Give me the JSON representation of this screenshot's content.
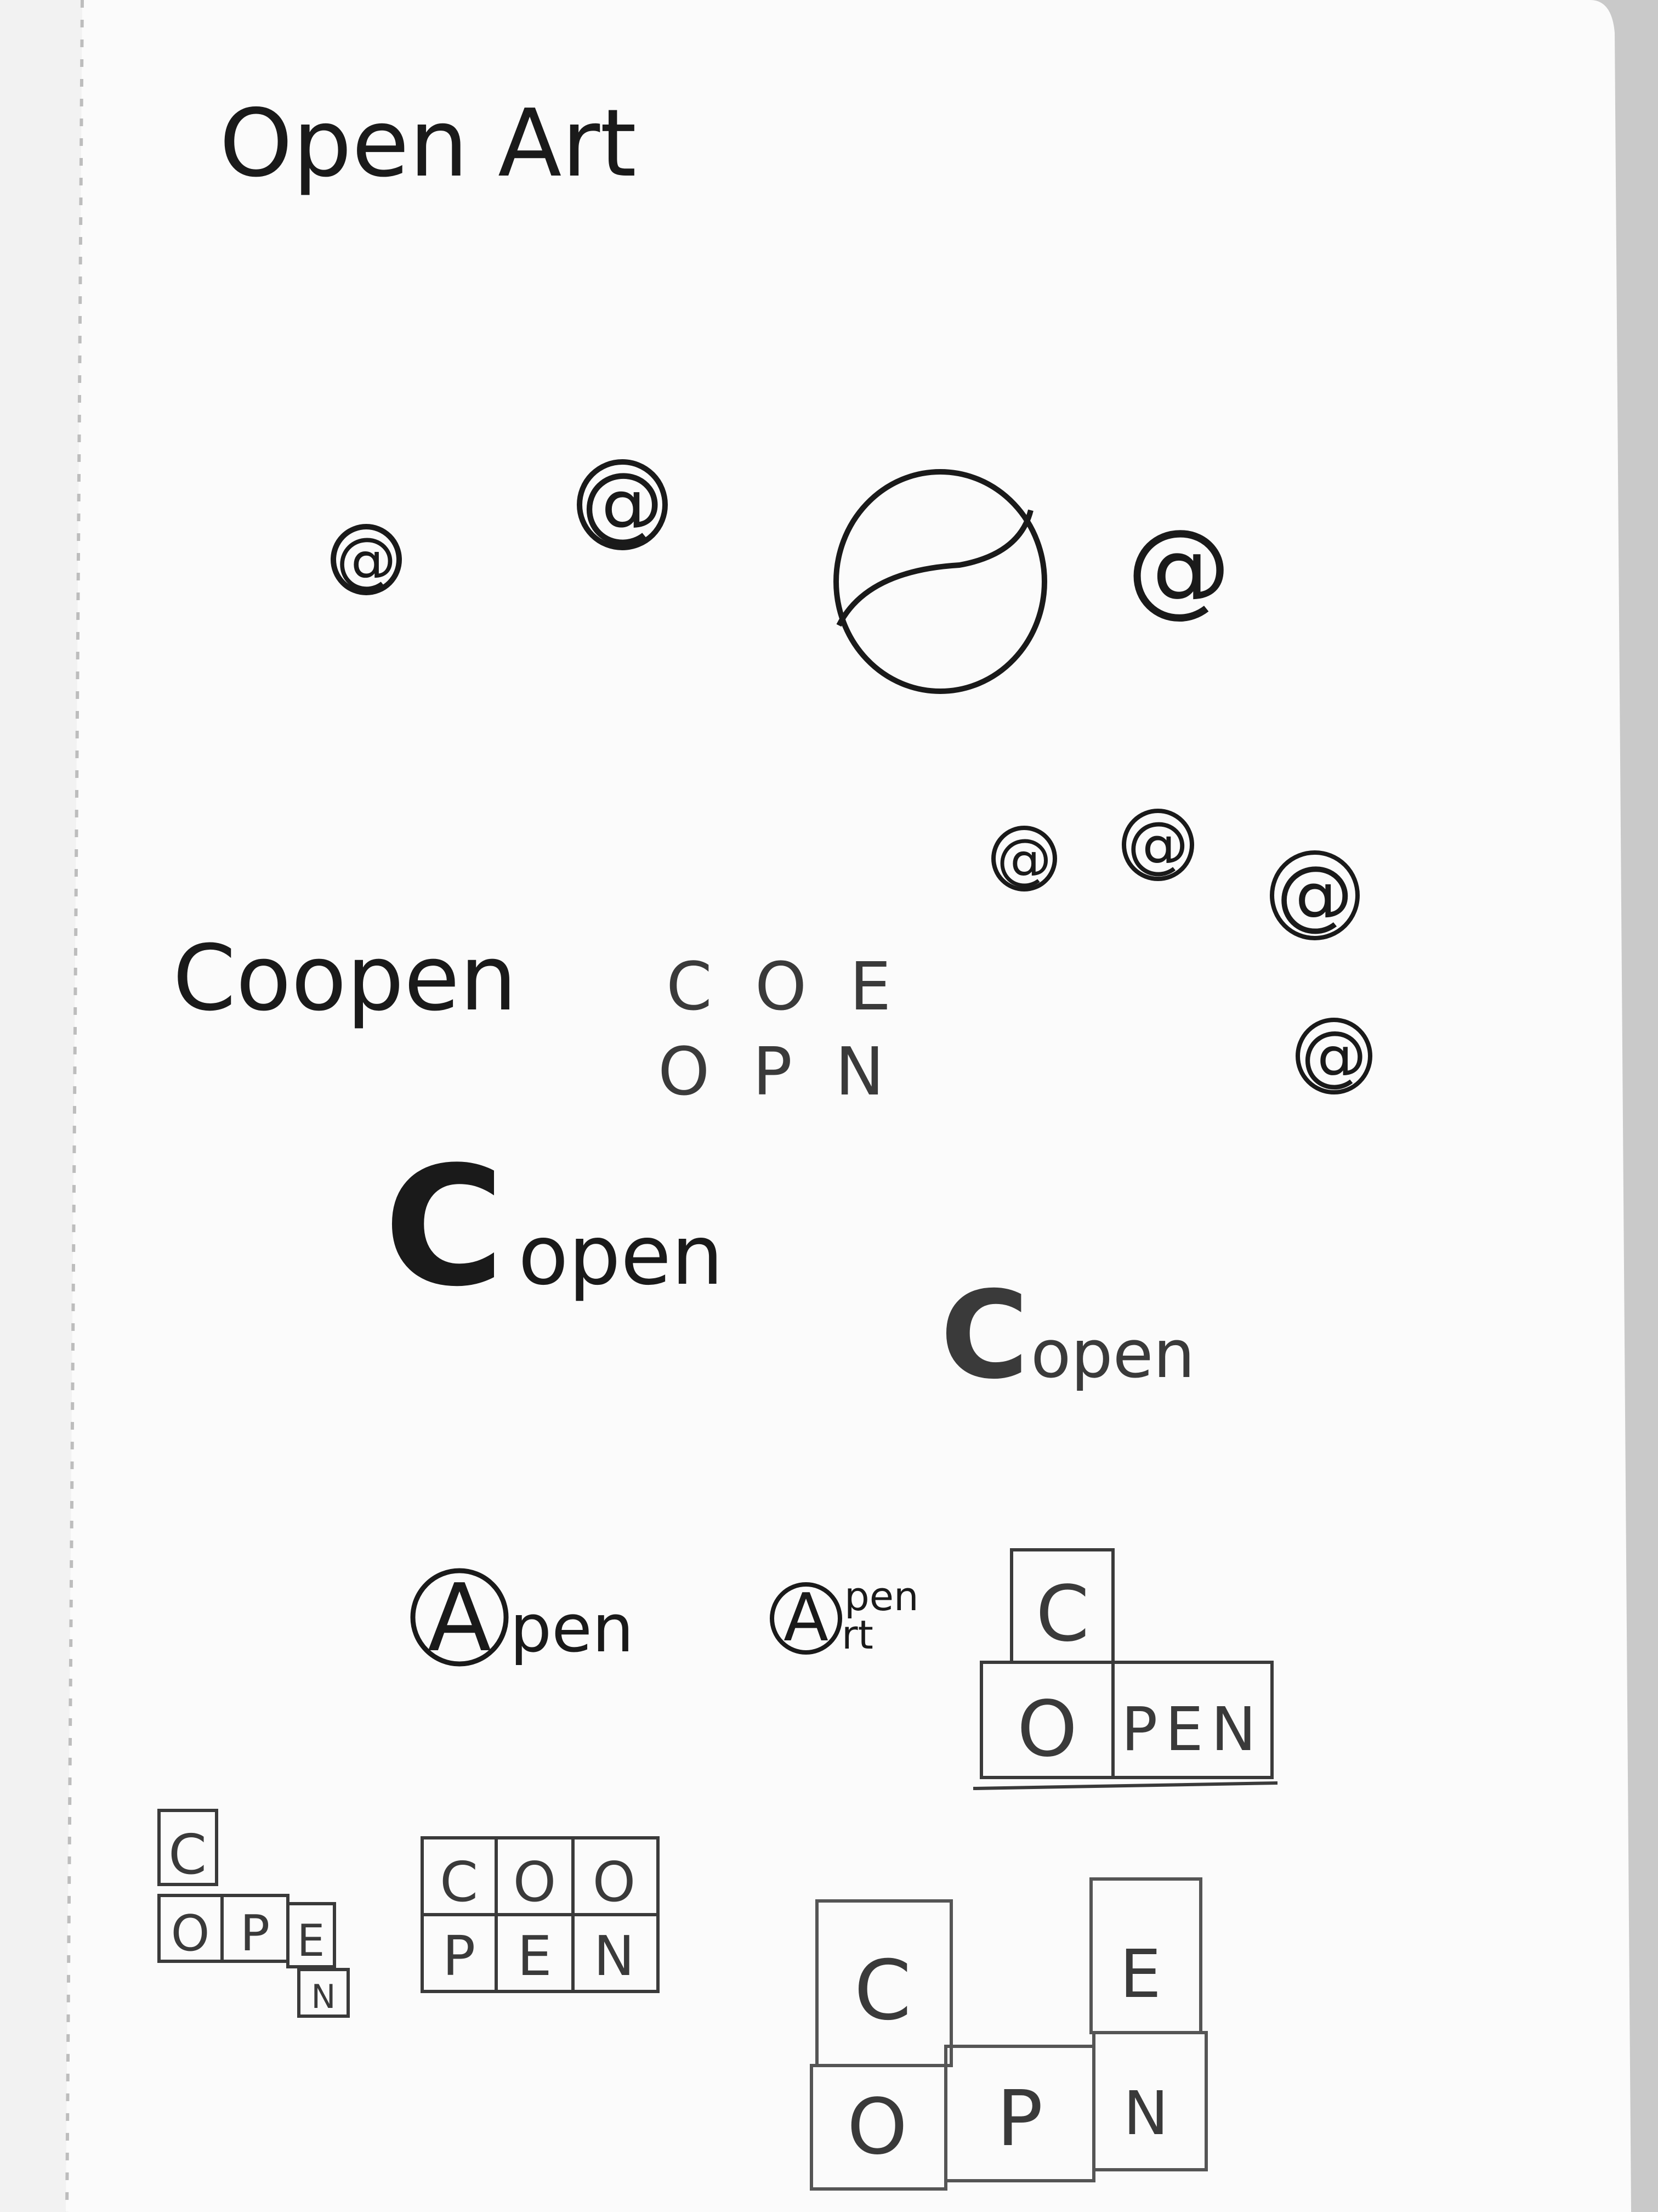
{
  "colors": {
    "paper": "#fbfbfb",
    "ink": "#1a1a1a",
    "pencil": "#3a3a3a",
    "left_page": "#f2f2f2"
  },
  "title": "Open Art",
  "coopen": "Coopen",
  "scattered": {
    "row1": "C O E",
    "row2": "O P N"
  },
  "open_bold": {
    "mark": "C",
    "word": "open"
  },
  "open_small": {
    "mark": "C",
    "word": "open"
  },
  "apen": {
    "mark": "A",
    "word": "pen"
  },
  "apen_art": {
    "mark": "A",
    "line1": "pen",
    "line2": "rt"
  },
  "at_symbol": "@",
  "grid_l": {
    "top": "C",
    "bottom": [
      "O",
      "PEN"
    ]
  },
  "grid_stair": {
    "top": "C",
    "mid": [
      "O",
      "P",
      "E"
    ],
    "low": "N"
  },
  "grid_2x3": {
    "row1": [
      "C",
      "O",
      "O"
    ],
    "row2": [
      "P",
      "E",
      "N"
    ]
  },
  "grid_big": {
    "row1": [
      "C",
      "E"
    ],
    "row2": [
      "O",
      "P",
      "N"
    ]
  }
}
